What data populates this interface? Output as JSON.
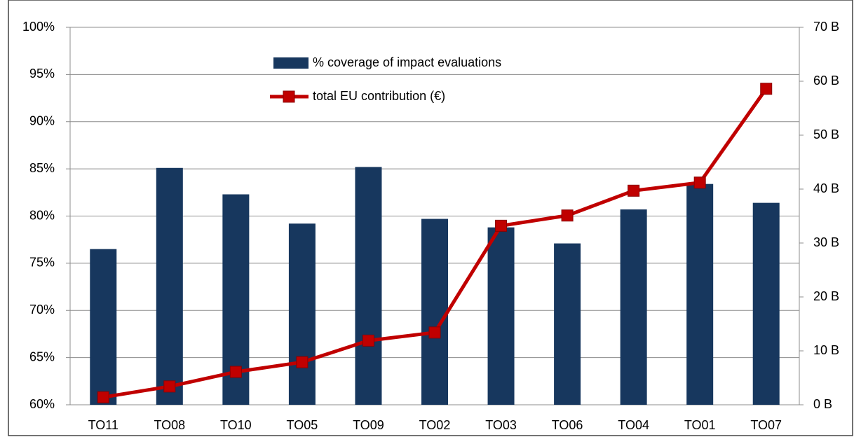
{
  "chart_data": {
    "type": "bar",
    "categories": [
      "TO11",
      "TO08",
      "TO10",
      "TO05",
      "TO09",
      "TO02",
      "TO03",
      "TO06",
      "TO04",
      "TO01",
      "TO07"
    ],
    "series": [
      {
        "name": "% coverage of impact evaluations",
        "type": "bar",
        "color": "#17375e",
        "axis": "y",
        "values": [
          76.5,
          85.1,
          82.3,
          79.2,
          85.2,
          79.7,
          78.8,
          77.1,
          80.7,
          83.4,
          81.4
        ]
      },
      {
        "name": "total EU contribution (€)",
        "type": "line",
        "color": "#c00000",
        "axis": "y2",
        "values": [
          1.4,
          3.4,
          6.1,
          7.9,
          11.9,
          13.4,
          33.2,
          35.1,
          39.7,
          41.2,
          58.6
        ]
      }
    ],
    "ylim": [
      60,
      100
    ],
    "yticks": [
      {
        "value": 60,
        "label": "60%"
      },
      {
        "value": 65,
        "label": "65%"
      },
      {
        "value": 70,
        "label": "70%"
      },
      {
        "value": 75,
        "label": "75%"
      },
      {
        "value": 80,
        "label": "80%"
      },
      {
        "value": 85,
        "label": "85%"
      },
      {
        "value": 90,
        "label": "90%"
      },
      {
        "value": 95,
        "label": "95%"
      },
      {
        "value": 100,
        "label": "100%"
      }
    ],
    "y2lim": [
      0,
      70
    ],
    "y2ticks": [
      {
        "value": 0,
        "label": "0 B"
      },
      {
        "value": 10,
        "label": "10 B"
      },
      {
        "value": 20,
        "label": "20 B"
      },
      {
        "value": 30,
        "label": "30 B"
      },
      {
        "value": 40,
        "label": "40 B"
      },
      {
        "value": 50,
        "label": "50 B"
      },
      {
        "value": 60,
        "label": "60 B"
      },
      {
        "value": 70,
        "label": "70 B"
      }
    ],
    "grid": true,
    "legend": "top"
  }
}
